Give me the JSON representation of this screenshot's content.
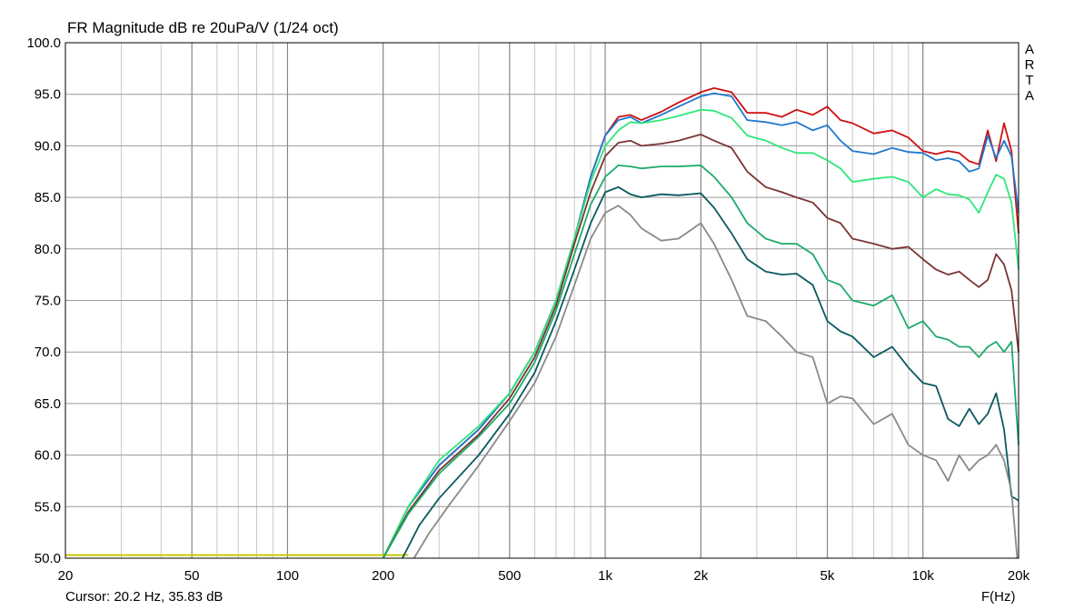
{
  "title": "FR Magnitude dB re 20uPa/V (1/24 oct)",
  "cursor_readout": "Cursor: 20.2 Hz, 35.83 dB",
  "x_unit_label": "F(Hz)",
  "brand": [
    "A",
    "R",
    "T",
    "A"
  ],
  "chart_data": {
    "type": "line",
    "title": "FR Magnitude dB re 20uPa/V (1/24 oct)",
    "xlabel": "F(Hz)",
    "ylabel": "",
    "xscale": "log",
    "xlim": [
      20,
      20000
    ],
    "ylim": [
      50,
      100
    ],
    "grid": true,
    "x_ticks": [
      "20",
      "50",
      "100",
      "200",
      "500",
      "1k",
      "2k",
      "5k",
      "10k",
      "20k"
    ],
    "x_tick_values": [
      20,
      50,
      100,
      200,
      500,
      1000,
      2000,
      5000,
      10000,
      20000
    ],
    "y_ticks": [
      "50.0",
      "55.0",
      "60.0",
      "65.0",
      "70.0",
      "75.0",
      "80.0",
      "85.0",
      "90.0",
      "95.0",
      "100.0"
    ],
    "y_tick_values": [
      50,
      55,
      60,
      65,
      70,
      75,
      80,
      85,
      90,
      95,
      100
    ],
    "floor_line": {
      "color": "#c8c800",
      "x": [
        20,
        240
      ],
      "y": [
        50.3,
        50.3
      ]
    },
    "series": [
      {
        "color": "#cc1010",
        "x": [
          200,
          240,
          300,
          400,
          500,
          600,
          700,
          800,
          900,
          1000,
          1100,
          1200,
          1300,
          1500,
          1700,
          2000,
          2200,
          2500,
          2800,
          3200,
          3600,
          4000,
          4500,
          5000,
          5500,
          6000,
          7000,
          8000,
          9000,
          10000,
          11000,
          12000,
          13000,
          14000,
          15000,
          16000,
          17000,
          18000,
          19000,
          20000
        ],
        "y": [
          50,
          55,
          59,
          62.5,
          66,
          70,
          75,
          81,
          87,
          91,
          92.8,
          93,
          92.5,
          93.3,
          94.2,
          95.2,
          95.6,
          95.2,
          93.2,
          93.2,
          92.8,
          93.5,
          93,
          93.8,
          92.5,
          92.2,
          91.2,
          91.5,
          90.8,
          89.5,
          89.2,
          89.5,
          89.3,
          88.5,
          88.2,
          91.5,
          88.5,
          92.2,
          89.5,
          81.5
        ]
      },
      {
        "color": "#1f78d0",
        "x": [
          200,
          240,
          300,
          400,
          500,
          600,
          700,
          800,
          900,
          1000,
          1100,
          1200,
          1300,
          1500,
          1700,
          2000,
          2200,
          2500,
          2800,
          3200,
          3600,
          4000,
          4500,
          5000,
          5500,
          6000,
          7000,
          8000,
          9000,
          10000,
          11000,
          12000,
          13000,
          14000,
          15000,
          16000,
          17000,
          18000,
          19000,
          20000
        ],
        "y": [
          50,
          55,
          59,
          62.5,
          66,
          70,
          75,
          81,
          87,
          91,
          92.5,
          92.8,
          92.2,
          93,
          93.8,
          94.8,
          95.1,
          94.8,
          92.5,
          92.3,
          92,
          92.3,
          91.5,
          92,
          90.5,
          89.5,
          89.2,
          89.8,
          89.4,
          89.3,
          88.6,
          88.8,
          88.5,
          87.5,
          87.8,
          91,
          88.8,
          90.5,
          89,
          83.5
        ]
      },
      {
        "color": "#2ee87a",
        "x": [
          200,
          240,
          300,
          400,
          500,
          600,
          700,
          800,
          900,
          1000,
          1100,
          1200,
          1300,
          1500,
          1700,
          2000,
          2200,
          2500,
          2800,
          3200,
          3600,
          4000,
          4500,
          5000,
          5500,
          6000,
          7000,
          8000,
          9000,
          10000,
          11000,
          12000,
          13000,
          14000,
          15000,
          16000,
          17000,
          18000,
          19000,
          20000
        ],
        "y": [
          50,
          55,
          59.5,
          62.8,
          66,
          70,
          75,
          81,
          86.5,
          90,
          91.5,
          92.3,
          92.2,
          92.5,
          92.9,
          93.5,
          93.4,
          92.7,
          91,
          90.5,
          89.8,
          89.3,
          89.3,
          88.6,
          87.8,
          86.5,
          86.8,
          87,
          86.5,
          85,
          85.8,
          85.3,
          85.2,
          84.8,
          83.5,
          85.5,
          87.2,
          86.8,
          84.5,
          78
        ]
      },
      {
        "color": "#7a3434",
        "x": [
          200,
          240,
          300,
          400,
          500,
          600,
          700,
          800,
          900,
          1000,
          1100,
          1200,
          1300,
          1500,
          1700,
          2000,
          2200,
          2500,
          2800,
          3200,
          3600,
          4000,
          4500,
          5000,
          5500,
          6000,
          7000,
          8000,
          9000,
          10000,
          11000,
          12000,
          13000,
          14000,
          15000,
          16000,
          17000,
          18000,
          19000,
          20000
        ],
        "y": [
          50,
          54.5,
          58.5,
          62,
          65.5,
          69.5,
          74.5,
          80.5,
          85.5,
          89,
          90.3,
          90.5,
          90,
          90.2,
          90.5,
          91.1,
          90.5,
          89.8,
          87.5,
          86,
          85.5,
          85,
          84.5,
          83,
          82.5,
          81,
          80.5,
          80,
          80.2,
          79,
          78,
          77.5,
          77.8,
          77,
          76.3,
          77,
          79.5,
          78.5,
          76,
          70
        ]
      },
      {
        "color": "#1eaa6a",
        "x": [
          200,
          240,
          300,
          400,
          500,
          600,
          700,
          800,
          900,
          1000,
          1100,
          1200,
          1300,
          1500,
          1700,
          2000,
          2200,
          2500,
          2800,
          3200,
          3600,
          4000,
          4500,
          5000,
          5500,
          6000,
          7000,
          8000,
          9000,
          10000,
          11000,
          12000,
          13000,
          14000,
          15000,
          16000,
          17000,
          18000,
          19000,
          20000
        ],
        "y": [
          50,
          54.3,
          58.2,
          61.8,
          65,
          69,
          74,
          79.5,
          84.3,
          87,
          88.1,
          88,
          87.8,
          88,
          88,
          88.1,
          87,
          85,
          82.5,
          81,
          80.5,
          80.5,
          79.5,
          77,
          76.5,
          75,
          74.5,
          75.5,
          72.3,
          73,
          71.5,
          71.2,
          70.5,
          70.5,
          69.5,
          70.5,
          71,
          70,
          71,
          61
        ]
      },
      {
        "color": "#0a5a60",
        "x": [
          230,
          260,
          300,
          400,
          500,
          600,
          700,
          800,
          900,
          1000,
          1100,
          1200,
          1300,
          1500,
          1700,
          2000,
          2200,
          2500,
          2800,
          3200,
          3600,
          4000,
          4500,
          5000,
          5500,
          6000,
          7000,
          8000,
          9000,
          10000,
          11000,
          12000,
          13000,
          14000,
          15000,
          16000,
          17000,
          18000,
          19000,
          20000
        ],
        "y": [
          50,
          53.2,
          55.8,
          60,
          64,
          68,
          73,
          78,
          82.5,
          85.5,
          86,
          85.3,
          85,
          85.3,
          85.2,
          85.4,
          84,
          81.5,
          79,
          77.8,
          77.5,
          77.6,
          76.5,
          73,
          72,
          71.5,
          69.5,
          70.5,
          68.5,
          67,
          66.7,
          63.5,
          62.8,
          64.5,
          63,
          64,
          66,
          62.5,
          56,
          55.6
        ]
      },
      {
        "color": "#8a8a8a",
        "x": [
          250,
          280,
          320,
          400,
          500,
          600,
          700,
          800,
          900,
          1000,
          1100,
          1200,
          1300,
          1500,
          1700,
          2000,
          2200,
          2500,
          2800,
          3200,
          3600,
          4000,
          4500,
          5000,
          5500,
          6000,
          7000,
          8000,
          9000,
          10000,
          11000,
          12000,
          13000,
          14000,
          15000,
          16000,
          17000,
          18000,
          19000,
          19800
        ],
        "y": [
          50,
          52.5,
          55,
          59,
          63.3,
          67,
          71.5,
          76.5,
          81,
          83.5,
          84.2,
          83.3,
          82,
          80.8,
          81,
          82.5,
          80.5,
          77,
          73.5,
          73,
          71.5,
          70,
          69.5,
          65,
          65.7,
          65.5,
          63,
          64,
          61,
          60,
          59.5,
          57.5,
          60,
          58.5,
          59.5,
          60,
          61,
          59.5,
          56.5,
          50
        ]
      }
    ]
  }
}
